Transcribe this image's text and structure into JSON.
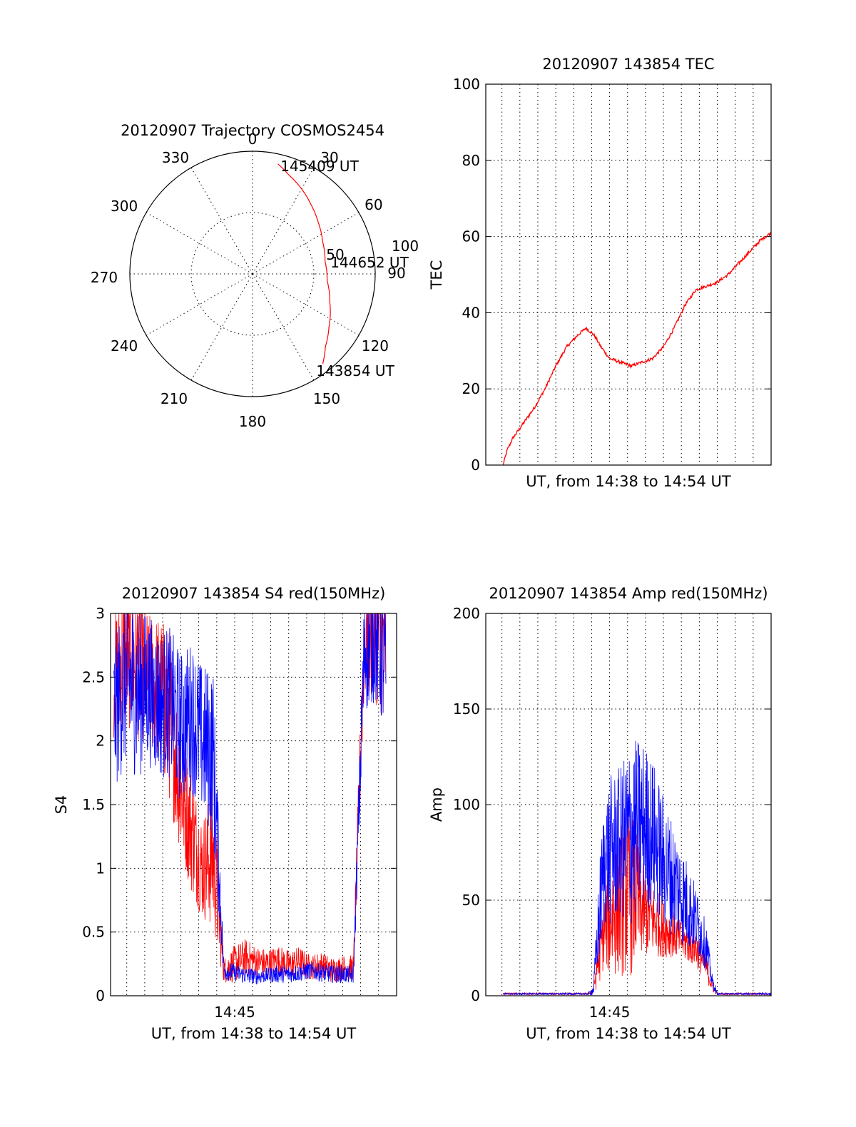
{
  "chart_data": [
    {
      "type": "polar",
      "title": "20120907 Trajectory COSMOS2454",
      "angle_labels": [
        "0",
        "30",
        "60",
        "90",
        "120",
        "150",
        "180",
        "210",
        "240",
        "270",
        "300",
        "330"
      ],
      "radial_labels": [
        "50",
        "100"
      ],
      "rlim": [
        0,
        100
      ],
      "grid": true,
      "annotations": [
        {
          "text": "145409 UT",
          "azimuth": 13,
          "zenith": 92
        },
        {
          "text": "144652 UT",
          "azimuth": 80,
          "zenith": 60
        },
        {
          "text": "143854 UT",
          "azimuth": 142,
          "zenith": 93
        }
      ],
      "series": [
        {
          "color": "#ff0000",
          "points": [
            [
              13,
              92
            ],
            [
              20,
              86
            ],
            [
              30,
              80
            ],
            [
              40,
              74
            ],
            [
              52,
              68
            ],
            [
              65,
              63
            ],
            [
              80,
              60
            ],
            [
              95,
              61
            ],
            [
              110,
              67
            ],
            [
              125,
              76
            ],
            [
              135,
              84
            ],
            [
              142,
              93
            ]
          ]
        }
      ]
    },
    {
      "type": "line",
      "title": "20120907 143854 TEC",
      "xlabel": "UT, from 14:38 to 14:54 UT",
      "ylabel": "TEC",
      "ylim": [
        0,
        100
      ],
      "yticks": [
        "0",
        "20",
        "40",
        "60",
        "80",
        "100"
      ],
      "xlim": [
        14.635,
        14.9
      ],
      "grid": true,
      "series": [
        {
          "color": "#ff0000",
          "x": [
            14.651,
            14.655,
            14.66,
            14.67,
            14.68,
            14.69,
            14.7,
            14.71,
            14.72,
            14.728,
            14.732,
            14.736,
            14.742,
            14.75,
            14.76,
            14.77,
            14.78,
            14.79,
            14.8,
            14.81,
            14.82,
            14.83,
            14.84,
            14.85,
            14.86,
            14.87,
            14.88,
            14.89,
            14.9
          ],
          "y": [
            0,
            4,
            7,
            11,
            15,
            20,
            26,
            31,
            34,
            36,
            35,
            34,
            31,
            28,
            27,
            26,
            27,
            28,
            31,
            36,
            42,
            46,
            47,
            48,
            50,
            53,
            56,
            59,
            61
          ]
        }
      ]
    },
    {
      "type": "line",
      "title": "20120907 143854 S4 red(150MHz)",
      "xlabel": "UT, from 14:38 to 14:54 UT",
      "ylabel": "S4",
      "ylim": [
        0,
        3
      ],
      "yticks": [
        "0",
        "0.5",
        "1",
        "1.5",
        "2",
        "2.5",
        "3"
      ],
      "xlim": [
        14.635,
        14.9
      ],
      "xticks": [
        {
          "value": 14.75,
          "label": "14:45"
        }
      ],
      "grid": true,
      "series": [
        {
          "color": "#ff0000",
          "x": [
            14.638,
            14.65,
            14.66,
            14.67,
            14.68,
            14.69,
            14.7,
            14.71,
            14.72,
            14.73,
            14.74,
            14.75,
            14.76,
            14.77,
            14.78,
            14.79,
            14.8,
            14.81,
            14.82,
            14.83,
            14.84,
            14.85,
            14.86,
            14.87,
            14.88,
            14.89
          ],
          "y": [
            2.5,
            2.7,
            2.6,
            2.5,
            2.4,
            2.2,
            1.6,
            1.3,
            1.0,
            1.1,
            0.2,
            0.25,
            0.3,
            0.27,
            0.25,
            0.28,
            0.24,
            0.27,
            0.22,
            0.25,
            0.2,
            0.22,
            0.22,
            2.8,
            2.9,
            2.7
          ],
          "spread": [
            0.5,
            0.6,
            0.6,
            0.5,
            0.6,
            0.7,
            0.5,
            0.5,
            0.4,
            0.6,
            0.1,
            0.15,
            0.15,
            0.12,
            0.12,
            0.12,
            0.12,
            0.12,
            0.1,
            0.1,
            0.1,
            0.1,
            0.1,
            0.5,
            0.6,
            0.6
          ]
        },
        {
          "color": "#0000ff",
          "x": [
            14.638,
            14.65,
            14.66,
            14.67,
            14.68,
            14.69,
            14.7,
            14.71,
            14.72,
            14.73,
            14.74,
            14.75,
            14.76,
            14.77,
            14.78,
            14.79,
            14.8,
            14.81,
            14.82,
            14.83,
            14.84,
            14.85,
            14.86,
            14.87,
            14.88,
            14.89
          ],
          "y": [
            2.2,
            2.5,
            2.4,
            2.4,
            2.3,
            2.3,
            2.1,
            2.2,
            2.0,
            1.9,
            0.2,
            0.18,
            0.16,
            0.15,
            0.16,
            0.17,
            0.17,
            0.18,
            0.2,
            0.18,
            0.17,
            0.17,
            0.16,
            2.7,
            2.8,
            2.6
          ],
          "spread": [
            0.6,
            0.7,
            0.7,
            0.6,
            0.6,
            0.6,
            0.6,
            0.6,
            0.6,
            0.7,
            0.08,
            0.07,
            0.07,
            0.06,
            0.06,
            0.07,
            0.07,
            0.07,
            0.07,
            0.07,
            0.07,
            0.07,
            0.07,
            0.5,
            0.5,
            0.6
          ]
        }
      ]
    },
    {
      "type": "line",
      "title": "20120907 143854 Amp red(150MHz)",
      "xlabel": "UT, from 14:38 to 14:54 UT",
      "ylabel": "Amp",
      "ylim": [
        0,
        200
      ],
      "yticks": [
        "0",
        "50",
        "100",
        "150",
        "200"
      ],
      "xlim": [
        14.635,
        14.9
      ],
      "xticks": [
        {
          "value": 14.75,
          "label": "14:45"
        }
      ],
      "grid": true,
      "series": [
        {
          "color": "#ff0000",
          "x": [
            14.651,
            14.66,
            14.67,
            14.68,
            14.69,
            14.7,
            14.71,
            14.72,
            14.73,
            14.735,
            14.74,
            14.745,
            14.75,
            14.76,
            14.77,
            14.78,
            14.79,
            14.8,
            14.81,
            14.82,
            14.83,
            14.84,
            14.845,
            14.85,
            14.86,
            14.87,
            14.88,
            14.89,
            14.9
          ],
          "y": [
            1,
            1,
            1,
            1,
            1,
            1,
            1,
            1,
            1,
            3,
            20,
            35,
            40,
            50,
            55,
            45,
            40,
            35,
            32,
            28,
            25,
            15,
            5,
            1,
            1,
            1,
            1,
            1,
            1
          ],
          "spread": [
            0.5,
            0.5,
            0.5,
            0.5,
            0.5,
            0.5,
            0.5,
            0.5,
            0.5,
            2,
            15,
            20,
            30,
            40,
            45,
            25,
            20,
            15,
            12,
            10,
            10,
            8,
            3,
            0.5,
            0.5,
            0.5,
            0.5,
            0.5,
            0.5
          ]
        },
        {
          "color": "#0000ff",
          "x": [
            14.651,
            14.66,
            14.67,
            14.68,
            14.69,
            14.7,
            14.71,
            14.72,
            14.73,
            14.735,
            14.74,
            14.745,
            14.75,
            14.76,
            14.77,
            14.78,
            14.79,
            14.8,
            14.81,
            14.82,
            14.83,
            14.84,
            14.845,
            14.85,
            14.86,
            14.87,
            14.88,
            14.89,
            14.9
          ],
          "y": [
            1,
            1,
            1,
            1,
            1,
            1,
            1,
            1,
            1,
            3,
            40,
            70,
            75,
            80,
            85,
            90,
            85,
            70,
            60,
            50,
            40,
            25,
            8,
            1,
            1,
            1,
            1,
            1,
            1
          ],
          "spread": [
            0.5,
            0.5,
            0.5,
            0.5,
            0.5,
            0.5,
            0.5,
            0.5,
            0.5,
            3,
            25,
            35,
            40,
            40,
            50,
            45,
            40,
            35,
            30,
            25,
            18,
            12,
            4,
            0.5,
            0.5,
            0.5,
            0.5,
            0.5,
            0.5
          ]
        }
      ]
    }
  ]
}
